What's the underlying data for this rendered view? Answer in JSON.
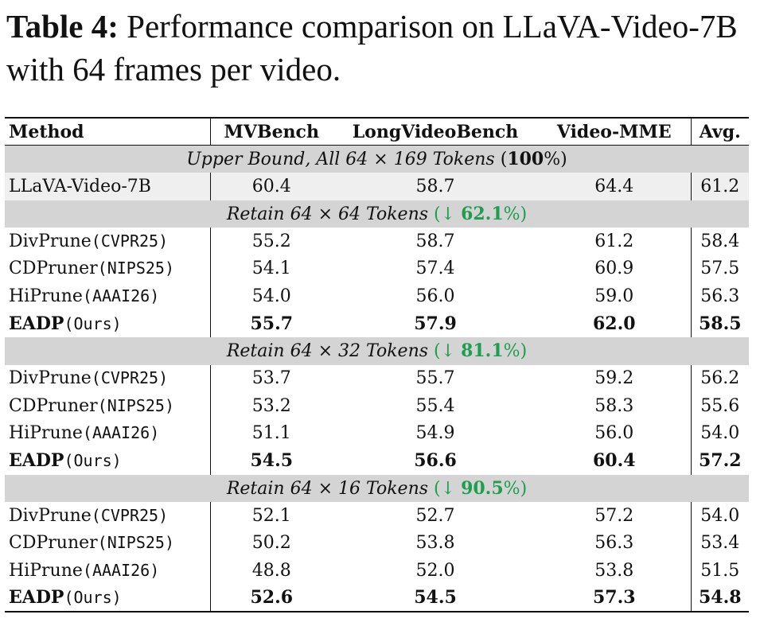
{
  "caption": {
    "label": "Table 4:",
    "text": "Performance comparison on LLaVA-Video-7B with 64 frames per video."
  },
  "headers": [
    "Method",
    "MVBench",
    "LongVideoBench",
    "Video-MME",
    "Avg."
  ],
  "upper_bound": {
    "label_pre": "Upper Bound, All 64",
    "times": "×",
    "label_post": "169 Tokens",
    "pct": "100",
    "pct_suffix": "%",
    "row": {
      "method": "LLaVA-Video-7B",
      "values": [
        "60.4",
        "58.7",
        "64.4",
        "61.2"
      ]
    }
  },
  "sections": [
    {
      "label_pre": "Retain 64",
      "times": "×",
      "label_post": "64 Tokens",
      "arrow": "↓",
      "pct": "62.1",
      "pct_suffix": "%",
      "rows": [
        {
          "method": "DivPrune",
          "venue": "(CVPR25)",
          "values": [
            "55.2",
            "58.7",
            "61.2",
            "58.4"
          ]
        },
        {
          "method": "CDPruner",
          "venue": "(NIPS25)",
          "values": [
            "54.1",
            "57.4",
            "60.9",
            "57.5"
          ]
        },
        {
          "method": "HiPrune",
          "venue": "(AAAI26)",
          "values": [
            "54.0",
            "56.0",
            "59.0",
            "56.3"
          ]
        },
        {
          "method": "EADP",
          "venue": "(Ours)",
          "values": [
            "55.7",
            "57.9",
            "62.0",
            "58.5"
          ]
        }
      ]
    },
    {
      "label_pre": "Retain 64",
      "times": "×",
      "label_post": "32 Tokens",
      "arrow": "↓",
      "pct": "81.1",
      "pct_suffix": "%",
      "rows": [
        {
          "method": "DivPrune",
          "venue": "(CVPR25)",
          "values": [
            "53.7",
            "55.7",
            "59.2",
            "56.2"
          ]
        },
        {
          "method": "CDPruner",
          "venue": "(NIPS25)",
          "values": [
            "53.2",
            "55.4",
            "58.3",
            "55.6"
          ]
        },
        {
          "method": "HiPrune",
          "venue": "(AAAI26)",
          "values": [
            "51.1",
            "54.9",
            "56.0",
            "54.0"
          ]
        },
        {
          "method": "EADP",
          "venue": "(Ours)",
          "values": [
            "54.5",
            "56.6",
            "60.4",
            "57.2"
          ]
        }
      ]
    },
    {
      "label_pre": "Retain 64",
      "times": "×",
      "label_post": "16 Tokens",
      "arrow": "↓",
      "pct": "90.5",
      "pct_suffix": "%",
      "rows": [
        {
          "method": "DivPrune",
          "venue": "(CVPR25)",
          "values": [
            "52.1",
            "52.7",
            "57.2",
            "54.0"
          ]
        },
        {
          "method": "CDPruner",
          "venue": "(NIPS25)",
          "values": [
            "50.2",
            "53.8",
            "56.3",
            "53.4"
          ]
        },
        {
          "method": "HiPrune",
          "venue": "(AAAI26)",
          "values": [
            "48.8",
            "52.0",
            "53.8",
            "51.5"
          ]
        },
        {
          "method": "EADP",
          "venue": "(Ours)",
          "values": [
            "52.6",
            "54.5",
            "57.3",
            "54.8"
          ]
        }
      ]
    }
  ]
}
